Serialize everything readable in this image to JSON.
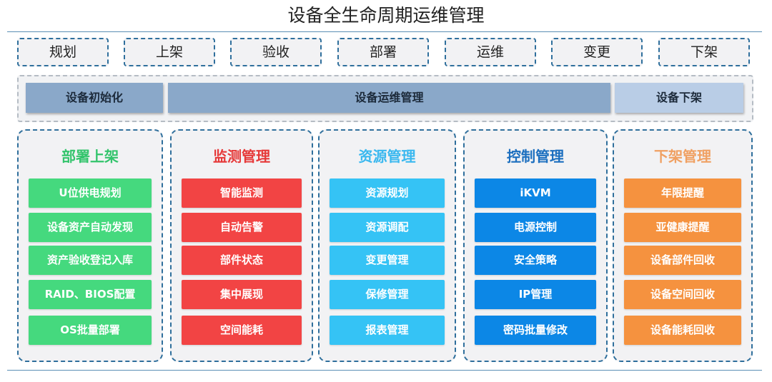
{
  "title": "设备全生命周期运维管理",
  "phases": [
    "规划",
    "上架",
    "验收",
    "部署",
    "运维",
    "变更",
    "下架"
  ],
  "stages": [
    {
      "label": "设备初始化",
      "color": "#8aa8c9"
    },
    {
      "label": "设备运维管理",
      "color": "#8aa8c9"
    },
    {
      "label": "设备下架",
      "color": "#b9cde6"
    }
  ],
  "columns": [
    {
      "title": "部署上架",
      "title_color": "#33c46c",
      "item_color": "#45d97e",
      "items": [
        "U位供电规划",
        "设备资产自动发现",
        "资产验收登记入库",
        "RAID、BIOS配置",
        "OS批量部署"
      ]
    },
    {
      "title": "监测管理",
      "title_color": "#e63838",
      "item_color": "#f24444",
      "items": [
        "智能监测",
        "自动告警",
        "部件状态",
        "集中展现",
        "空间能耗"
      ]
    },
    {
      "title": "资源管理",
      "title_color": "#3ab8ef",
      "item_color": "#35c3f5",
      "items": [
        "资源规划",
        "资源调配",
        "变更管理",
        "保修管理",
        "报表管理"
      ]
    },
    {
      "title": "控制管理",
      "title_color": "#1c6fbf",
      "item_color": "#0c87e6",
      "items": [
        "iKVM",
        "电源控制",
        "安全策略",
        "IP管理",
        "密码批量修改"
      ]
    },
    {
      "title": "下架管理",
      "title_color": "#f0a062",
      "item_color": "#f5923f",
      "items": [
        "年限提醒",
        "亚健康提醒",
        "设备部件回收",
        "设备空间回收",
        "设备能耗回收"
      ]
    }
  ]
}
